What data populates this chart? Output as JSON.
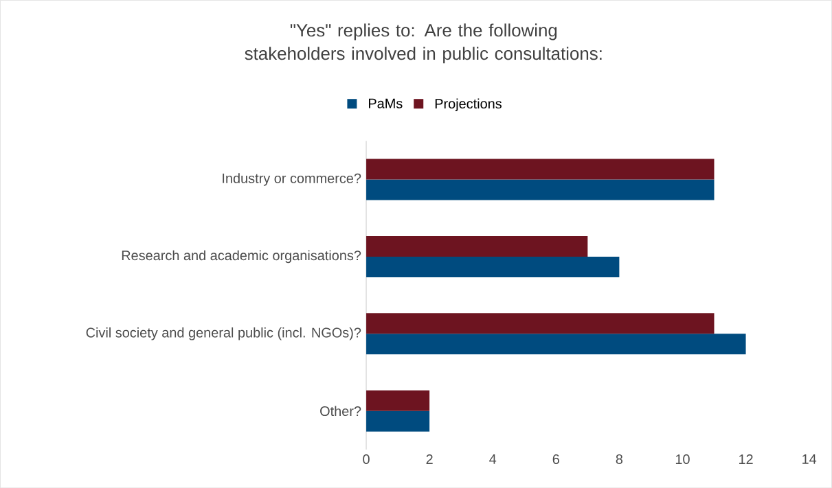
{
  "chart_data": {
    "type": "bar",
    "orientation": "horizontal",
    "title": "\"Yes\" replies to: Are the following stakeholders involved in public consultations:",
    "categories": [
      "Industry or commerce?",
      "Research and academic organisations?",
      "Civil society and general public (incl. NGOs)?",
      "Other?"
    ],
    "series": [
      {
        "name": "PaMs",
        "color": "#004b7f",
        "values": [
          11,
          8,
          12,
          2
        ]
      },
      {
        "name": "Projections",
        "color": "#6d1420",
        "values": [
          11,
          7,
          11,
          2
        ]
      }
    ],
    "xlim": [
      0,
      14
    ],
    "xticks": [
      0,
      2,
      4,
      6,
      8,
      10,
      12,
      14
    ],
    "legend": "top"
  }
}
